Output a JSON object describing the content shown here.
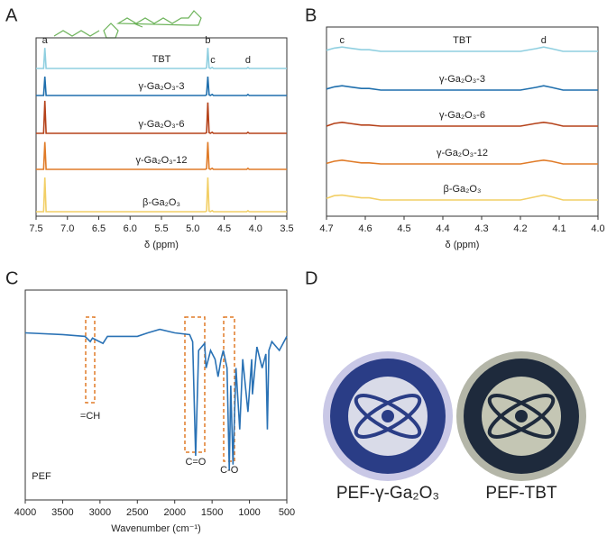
{
  "panel_labels": [
    "A",
    "B",
    "C",
    "D"
  ],
  "chart_data": [
    {
      "type": "line",
      "xlabel": "δ (ppm)",
      "xlim": [
        7.5,
        3.5
      ],
      "xticks": [
        7.5,
        {
          "value": 7,
          "label": "7.0"
        },
        6.5,
        {
          "value": 6,
          "label": "6.0"
        },
        5.5,
        {
          "value": 5,
          "label": "5.0"
        },
        4.5,
        {
          "value": 4,
          "label": "4.0"
        },
        3.5
      ],
      "x": [
        7.5,
        7.38,
        7.36,
        7.34,
        7.32,
        4.8,
        4.78,
        4.76,
        4.74,
        4.72,
        4.69,
        4.67,
        4.6,
        4.14,
        4.12,
        4.1,
        3.5
      ],
      "series": [
        {
          "name": "TBT",
          "color": "#8fcfe0",
          "values": [
            0,
            0,
            60,
            0,
            0,
            0,
            2,
            60,
            2,
            0,
            3,
            0,
            0,
            0,
            3,
            0,
            0
          ]
        },
        {
          "name": "γ-Ga₂O₃-3",
          "color": "#1f6fad",
          "values": [
            0,
            0,
            55,
            0,
            0,
            0,
            2,
            55,
            2,
            0,
            3,
            0,
            0,
            0,
            3,
            0,
            0
          ]
        },
        {
          "name": "γ-Ga₂O₃-6",
          "color": "#b5421a",
          "values": [
            0,
            0,
            95,
            0,
            0,
            0,
            2,
            90,
            2,
            0,
            3,
            0,
            0,
            0,
            3,
            0,
            0
          ]
        },
        {
          "name": "γ-Ga₂O₃-12",
          "color": "#e07b28",
          "values": [
            0,
            0,
            80,
            0,
            0,
            0,
            2,
            80,
            2,
            0,
            3,
            0,
            0,
            0,
            3,
            0,
            0
          ]
        },
        {
          "name": "β-Ga₂O₃",
          "color": "#f2cf66",
          "values": [
            0,
            0,
            100,
            0,
            0,
            0,
            2,
            100,
            2,
            0,
            3,
            0,
            0,
            0,
            3,
            0,
            0
          ]
        }
      ],
      "annotations": [
        {
          "text": "a",
          "x": 7.36
        },
        {
          "text": "b",
          "x": 4.76
        },
        {
          "text": "c",
          "x": 4.68
        },
        {
          "text": "d",
          "x": 4.12
        }
      ]
    },
    {
      "type": "line",
      "xlabel": "δ (ppm)",
      "xlim": [
        4.7,
        4.0
      ],
      "xticks": [
        4.7,
        4.6,
        4.5,
        4.4,
        4.3,
        4.2,
        4.1,
        {
          "value": 4,
          "label": "4.0"
        }
      ],
      "x": [
        4.7,
        4.68,
        4.66,
        4.64,
        4.61,
        4.59,
        4.56,
        4.2,
        4.16,
        4.14,
        4.12,
        4.09,
        4.0
      ],
      "series": [
        {
          "name": "TBT",
          "color": "#8fcfe0",
          "values": [
            2,
            6,
            8,
            6,
            3,
            3,
            0,
            0,
            5,
            8,
            5,
            0,
            0
          ]
        },
        {
          "name": "γ-Ga₂O₃-3",
          "color": "#1f6fad",
          "values": [
            2,
            6,
            8,
            6,
            3,
            3,
            0,
            0,
            5,
            8,
            5,
            0,
            0
          ]
        },
        {
          "name": "γ-Ga₂O₃-6",
          "color": "#b5421a",
          "values": [
            0,
            5,
            7,
            5,
            2,
            2,
            0,
            0,
            5,
            7,
            5,
            0,
            0
          ]
        },
        {
          "name": "γ-Ga₂O₃-12",
          "color": "#e07b28",
          "values": [
            1,
            5,
            7,
            5,
            2,
            2,
            0,
            0,
            5,
            7,
            5,
            0,
            0
          ]
        },
        {
          "name": "β-Ga₂O₃",
          "color": "#f2cf66",
          "values": [
            3,
            8,
            9,
            7,
            4,
            4,
            0,
            0,
            6,
            9,
            6,
            0,
            0
          ]
        }
      ],
      "annotations": [
        {
          "text": "c",
          "x": 4.66
        },
        {
          "text": "d",
          "x": 4.14
        }
      ]
    },
    {
      "type": "line",
      "xlabel": "Wavenumber (cm⁻¹)",
      "xlim": [
        4000,
        500
      ],
      "xticks": [
        4000,
        3500,
        3000,
        2500,
        2000,
        1500,
        1000,
        500
      ],
      "x": [
        4000,
        3500,
        3200,
        3130,
        3100,
        2960,
        2900,
        2500,
        2360,
        2200,
        2000,
        1800,
        1760,
        1720,
        1680,
        1600,
        1580,
        1520,
        1460,
        1420,
        1380,
        1350,
        1300,
        1270,
        1250,
        1220,
        1180,
        1130,
        1090,
        1020,
        970,
        960,
        900,
        830,
        780,
        760,
        740,
        700,
        600,
        500
      ],
      "series": [
        {
          "name": "PEF",
          "color": "#2a72b5",
          "values": [
            90,
            89,
            88,
            85,
            87,
            84,
            88,
            88,
            90,
            92,
            90,
            89,
            85,
            20,
            80,
            84,
            70,
            80,
            75,
            65,
            75,
            80,
            70,
            12,
            60,
            15,
            70,
            35,
            75,
            45,
            75,
            55,
            82,
            70,
            78,
            35,
            80,
            85,
            80,
            88
          ]
        }
      ],
      "annotations": [
        {
          "text": "=CH",
          "x": 3130
        },
        {
          "text": "C=O",
          "x": 1720
        },
        {
          "text": "C-O",
          "x": 1270
        }
      ]
    }
  ],
  "photos": [
    "PEF-γ-Ga₂O₃",
    "PEF-TBT"
  ]
}
